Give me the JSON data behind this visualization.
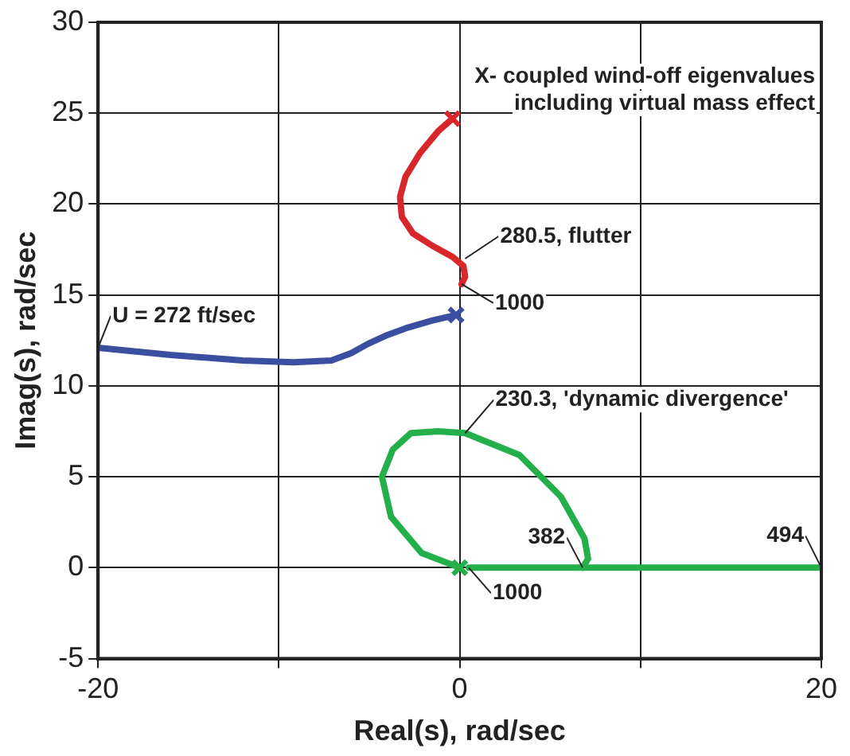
{
  "chart_data": {
    "type": "line",
    "xlabel": "Real(s), rad/sec",
    "ylabel": "Imag(s), rad/sec",
    "xlim": [
      -20,
      20
    ],
    "xticks": [
      -20,
      {
        "value": -10,
        "label": null
      },
      0,
      {
        "value": 10,
        "label": null
      },
      20
    ],
    "ylim": [
      -5,
      30
    ],
    "yticks": [
      -5,
      0,
      5,
      10,
      15,
      20,
      25,
      30
    ],
    "grid": true,
    "legend": false,
    "line_style": "solid",
    "series": [
      {
        "color": "#d7272b",
        "x": [
          -0.4,
          -1.2,
          -2.2,
          -3,
          -3.3,
          -3.2,
          -2.6,
          -1.5,
          -0.4,
          0.2,
          0.3,
          0.1
        ],
        "values": [
          24.7,
          24,
          22.8,
          21.5,
          20.4,
          19.3,
          18.4,
          17.7,
          17.1,
          16.6,
          16.0,
          15.6
        ]
      },
      {
        "color": "#3a4fa0",
        "x": [
          -20,
          -16,
          -12,
          -9.2,
          -7.1,
          -6,
          -5.1,
          -4,
          -2.9,
          -1.5,
          -0.2
        ],
        "values": [
          12.1,
          11.7,
          11.4,
          11.3,
          11.4,
          11.8,
          12.3,
          12.8,
          13.2,
          13.6,
          13.9
        ]
      },
      {
        "color": "#23b04a",
        "x": [
          0,
          -2.1,
          -3.8,
          -4.3,
          -3.7,
          -2.7,
          -1.2,
          0.3,
          3.3,
          5.6,
          6.9,
          7.1,
          6.8
        ],
        "values": [
          0,
          0.8,
          2.8,
          5.0,
          6.5,
          7.4,
          7.5,
          7.4,
          6.2,
          3.9,
          1.6,
          0.5,
          0
        ]
      },
      {
        "color": "#23b04a",
        "x": [
          0.5,
          20
        ],
        "values": [
          0,
          0
        ]
      },
      {
        "type": "scatter",
        "marker": "cross",
        "colors": [
          "#d7272b",
          "#3a4fa0",
          "#23b04a"
        ],
        "x": [
          -0.4,
          -0.2,
          0
        ],
        "values": [
          24.7,
          13.9,
          0
        ]
      }
    ],
    "annotations": [
      {
        "text": "U = 272 ft/sec",
        "x": -20,
        "y": 12.1
      },
      {
        "text": "280.5, flutter",
        "x": 0.3,
        "y": 17.0
      },
      {
        "text": "1000",
        "x": 0.1,
        "y": 15.6
      },
      {
        "text": "230.3, 'dynamic divergence'",
        "x": 0.3,
        "y": 7.4
      },
      {
        "text": "382",
        "x": 6.8,
        "y": 0
      },
      {
        "text": "494",
        "x": 20,
        "y": 0
      },
      {
        "text": "1000",
        "x": 0.5,
        "y": 0
      },
      "X- coupled wind-off eigenvalues\nincluding virtual mass effect"
    ]
  }
}
